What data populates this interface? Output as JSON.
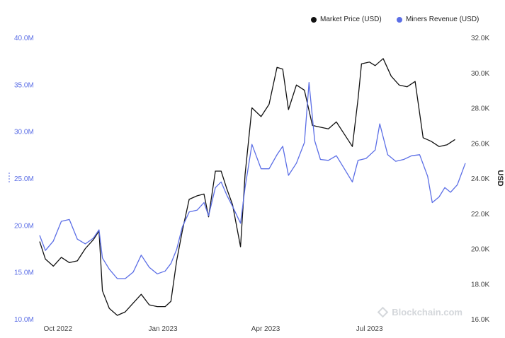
{
  "legend": {
    "market_price": "Market Price (USD)",
    "miners_revenue": "Miners Revenue (USD)"
  },
  "watermark": "Blockchain.com",
  "colors": {
    "market_price": "#111111",
    "miners_revenue": "#5b6ee6",
    "left_axis": "#5b6ee6",
    "right_axis": "#444444"
  },
  "chart_data": {
    "type": "line",
    "title": "",
    "x_ticks": [
      "Oct 2022",
      "Jan 2023",
      "Apr 2023",
      "Jul 2023"
    ],
    "x_tick_dates": [
      "2022-10-01",
      "2023-01-01",
      "2023-04-01",
      "2023-07-01"
    ],
    "x_range": [
      "2022-09-15",
      "2023-09-23"
    ],
    "left_axis": {
      "label": "",
      "ticks": [
        "10.0M",
        "15.0M",
        "20.0M",
        "25.0M",
        "30.0M",
        "35.0M",
        "40.0M"
      ],
      "values": [
        10000000,
        15000000,
        20000000,
        25000000,
        30000000,
        35000000,
        40000000
      ],
      "ylim": [
        10000000,
        40000000
      ]
    },
    "right_axis": {
      "label": "USD",
      "ticks": [
        "16.0K",
        "18.0K",
        "20.0K",
        "22.0K",
        "24.0K",
        "26.0K",
        "28.0K",
        "30.0K",
        "32.0K"
      ],
      "values": [
        16000,
        18000,
        20000,
        22000,
        24000,
        26000,
        28000,
        30000,
        32000
      ],
      "ylim": [
        16000,
        32000
      ]
    },
    "grid": false,
    "legend_position": "top-right",
    "series": [
      {
        "name": "Market Price (USD)",
        "axis": "right",
        "points": [
          [
            "2022-09-15",
            20.4
          ],
          [
            "2022-09-20",
            19.4
          ],
          [
            "2022-09-27",
            19.0
          ],
          [
            "2022-10-04",
            19.5
          ],
          [
            "2022-10-11",
            19.2
          ],
          [
            "2022-10-18",
            19.3
          ],
          [
            "2022-10-25",
            20.0
          ],
          [
            "2022-11-01",
            20.5
          ],
          [
            "2022-11-06",
            21.0
          ],
          [
            "2022-11-09",
            17.6
          ],
          [
            "2022-11-15",
            16.6
          ],
          [
            "2022-11-22",
            16.2
          ],
          [
            "2022-11-29",
            16.4
          ],
          [
            "2022-12-06",
            16.9
          ],
          [
            "2022-12-13",
            17.4
          ],
          [
            "2022-12-20",
            16.8
          ],
          [
            "2022-12-27",
            16.7
          ],
          [
            "2023-01-03",
            16.7
          ],
          [
            "2023-01-08",
            17.0
          ],
          [
            "2023-01-13",
            19.3
          ],
          [
            "2023-01-18",
            21.0
          ],
          [
            "2023-01-24",
            22.8
          ],
          [
            "2023-01-31",
            23.0
          ],
          [
            "2023-02-06",
            23.1
          ],
          [
            "2023-02-10",
            21.8
          ],
          [
            "2023-02-16",
            24.4
          ],
          [
            "2023-02-21",
            24.4
          ],
          [
            "2023-02-26",
            23.4
          ],
          [
            "2023-03-03",
            22.5
          ],
          [
            "2023-03-10",
            20.1
          ],
          [
            "2023-03-14",
            24.2
          ],
          [
            "2023-03-20",
            28.0
          ],
          [
            "2023-03-28",
            27.5
          ],
          [
            "2023-04-04",
            28.2
          ],
          [
            "2023-04-11",
            30.3
          ],
          [
            "2023-04-16",
            30.2
          ],
          [
            "2023-04-21",
            27.9
          ],
          [
            "2023-04-28",
            29.3
          ],
          [
            "2023-05-05",
            29.0
          ],
          [
            "2023-05-12",
            27.0
          ],
          [
            "2023-05-19",
            26.9
          ],
          [
            "2023-05-26",
            26.8
          ],
          [
            "2023-06-02",
            27.2
          ],
          [
            "2023-06-09",
            26.5
          ],
          [
            "2023-06-16",
            25.8
          ],
          [
            "2023-06-21",
            28.5
          ],
          [
            "2023-06-24",
            30.5
          ],
          [
            "2023-07-01",
            30.6
          ],
          [
            "2023-07-06",
            30.4
          ],
          [
            "2023-07-13",
            30.8
          ],
          [
            "2023-07-20",
            29.8
          ],
          [
            "2023-07-27",
            29.3
          ],
          [
            "2023-08-03",
            29.2
          ],
          [
            "2023-08-10",
            29.5
          ],
          [
            "2023-08-17",
            26.3
          ],
          [
            "2023-08-24",
            26.1
          ],
          [
            "2023-08-31",
            25.8
          ],
          [
            "2023-09-07",
            25.9
          ],
          [
            "2023-09-14",
            26.2
          ]
        ]
      },
      {
        "name": "Miners Revenue (USD)",
        "axis": "left",
        "points": [
          [
            "2022-09-15",
            18.9
          ],
          [
            "2022-09-20",
            17.3
          ],
          [
            "2022-09-27",
            18.3
          ],
          [
            "2022-10-04",
            20.4
          ],
          [
            "2022-10-11",
            20.6
          ],
          [
            "2022-10-18",
            18.5
          ],
          [
            "2022-10-25",
            18.0
          ],
          [
            "2022-11-01",
            18.6
          ],
          [
            "2022-11-06",
            19.5
          ],
          [
            "2022-11-09",
            16.5
          ],
          [
            "2022-11-15",
            15.3
          ],
          [
            "2022-11-22",
            14.3
          ],
          [
            "2022-11-29",
            14.3
          ],
          [
            "2022-12-06",
            15.0
          ],
          [
            "2022-12-13",
            16.8
          ],
          [
            "2022-12-20",
            15.5
          ],
          [
            "2022-12-27",
            14.8
          ],
          [
            "2023-01-03",
            15.1
          ],
          [
            "2023-01-08",
            15.9
          ],
          [
            "2023-01-13",
            17.4
          ],
          [
            "2023-01-18",
            19.8
          ],
          [
            "2023-01-24",
            21.4
          ],
          [
            "2023-01-31",
            21.6
          ],
          [
            "2023-02-06",
            22.4
          ],
          [
            "2023-02-10",
            21.0
          ],
          [
            "2023-02-16",
            24.0
          ],
          [
            "2023-02-21",
            24.6
          ],
          [
            "2023-02-26",
            23.2
          ],
          [
            "2023-03-03",
            22.0
          ],
          [
            "2023-03-10",
            20.2
          ],
          [
            "2023-03-14",
            24.0
          ],
          [
            "2023-03-20",
            28.6
          ],
          [
            "2023-03-28",
            26.0
          ],
          [
            "2023-04-04",
            26.0
          ],
          [
            "2023-04-11",
            27.5
          ],
          [
            "2023-04-16",
            28.4
          ],
          [
            "2023-04-21",
            25.3
          ],
          [
            "2023-04-28",
            26.6
          ],
          [
            "2023-05-05",
            28.8
          ],
          [
            "2023-05-09",
            35.2
          ],
          [
            "2023-05-14",
            29.0
          ],
          [
            "2023-05-19",
            27.0
          ],
          [
            "2023-05-26",
            26.9
          ],
          [
            "2023-06-02",
            27.4
          ],
          [
            "2023-06-09",
            26.0
          ],
          [
            "2023-06-16",
            24.6
          ],
          [
            "2023-06-21",
            26.9
          ],
          [
            "2023-06-28",
            27.1
          ],
          [
            "2023-07-06",
            28.0
          ],
          [
            "2023-07-10",
            30.8
          ],
          [
            "2023-07-17",
            27.5
          ],
          [
            "2023-07-24",
            26.8
          ],
          [
            "2023-07-31",
            27.0
          ],
          [
            "2023-08-07",
            27.4
          ],
          [
            "2023-08-14",
            27.5
          ],
          [
            "2023-08-21",
            25.2
          ],
          [
            "2023-08-25",
            22.4
          ],
          [
            "2023-08-31",
            23.0
          ],
          [
            "2023-09-05",
            24.0
          ],
          [
            "2023-09-10",
            23.5
          ],
          [
            "2023-09-16",
            24.3
          ],
          [
            "2023-09-23",
            26.6
          ]
        ]
      }
    ]
  }
}
